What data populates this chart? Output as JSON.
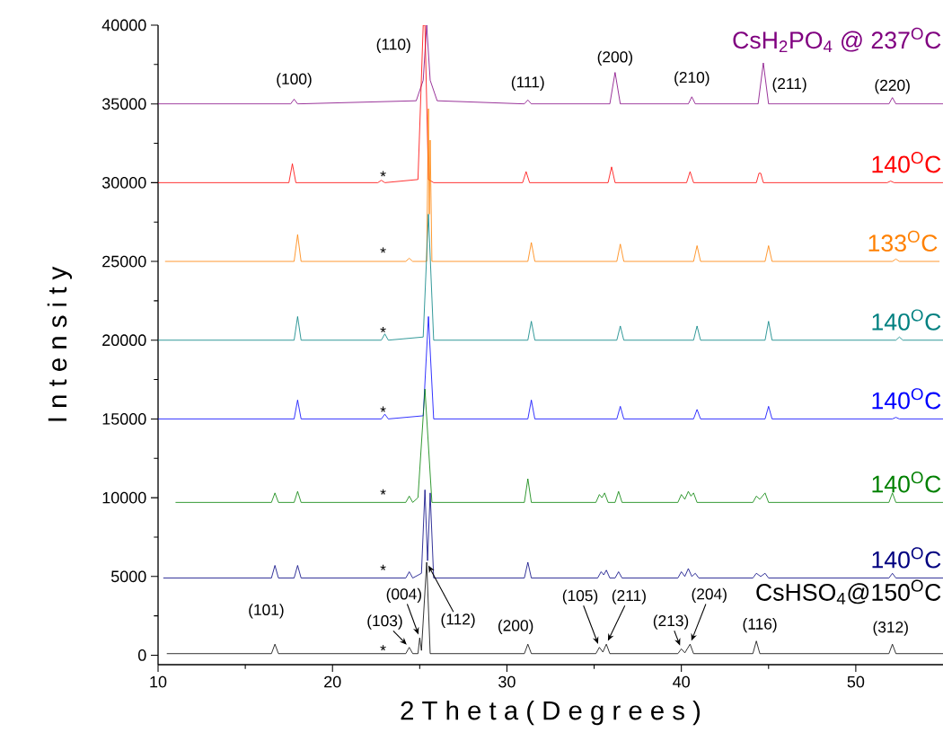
{
  "chart_data": {
    "type": "line",
    "xlabel": "2 T h e t a ( D e g r e e s )",
    "ylabel": "I n t e n s i t y",
    "xlim": [
      10,
      55
    ],
    "ylim": [
      -600,
      40000
    ],
    "xticks": [
      10,
      20,
      30,
      40,
      50
    ],
    "yticks": [
      0,
      5000,
      10000,
      15000,
      20000,
      25000,
      30000,
      35000,
      40000
    ],
    "grid": false,
    "legend": false,
    "marker": "none",
    "line_style": "solid",
    "series": [
      {
        "name": "CsH$_{2}$PO$_{4}$ @ 237$^{O}$C",
        "color": "#800080",
        "x": [
          10,
          17.6,
          17.8,
          18.0,
          24.8,
          25.2,
          25.4,
          25.6,
          26.0,
          31.0,
          31.2,
          31.4,
          35.9,
          36.2,
          36.5,
          40.4,
          40.6,
          40.8,
          44.4,
          44.7,
          45.0,
          51.9,
          52.1,
          52.3,
          55
        ],
        "values": [
          35000,
          35000,
          35300,
          35000,
          35200,
          36500,
          40000,
          36500,
          35200,
          35000,
          35250,
          35000,
          35000,
          37000,
          35000,
          35000,
          35450,
          35000,
          35000,
          37600,
          35000,
          35000,
          35400,
          35000,
          35000
        ]
      },
      {
        "name": "140$^{O}$C",
        "color": "#ff0000",
        "x": [
          10,
          17.5,
          17.7,
          17.9,
          22.6,
          22.8,
          23.0,
          24.9,
          25.2,
          25.3,
          25.5,
          25.8,
          30.9,
          31.1,
          31.3,
          35.8,
          36.0,
          36.2,
          40.3,
          40.5,
          40.7,
          44.3,
          44.45,
          44.55,
          44.7,
          51.8,
          52.0,
          52.2,
          55
        ],
        "values": [
          30000,
          30000,
          31200,
          30000,
          30000,
          30150,
          30000,
          30200,
          40000,
          40000,
          30200,
          30000,
          30000,
          30700,
          30000,
          30000,
          31000,
          30000,
          30000,
          30700,
          30000,
          30000,
          30600,
          30600,
          30000,
          30000,
          30100,
          30000,
          30000
        ]
      },
      {
        "name": "133$^{O}$C",
        "color": "#ff8000",
        "x": [
          10.4,
          17.8,
          18.0,
          18.2,
          24.2,
          24.4,
          24.6,
          25.4,
          25.5,
          25.55,
          25.6,
          25.7,
          31.2,
          31.4,
          31.6,
          36.3,
          36.5,
          36.7,
          40.7,
          40.9,
          41.1,
          44.8,
          45.0,
          45.2,
          52.1,
          52.3,
          52.5,
          54.8
        ],
        "values": [
          25000,
          25000,
          26700,
          25000,
          25000,
          25200,
          25000,
          25000,
          34700,
          28000,
          32700,
          25000,
          25000,
          26200,
          25000,
          25000,
          26100,
          25000,
          25000,
          26000,
          25000,
          25000,
          26000,
          25000,
          25000,
          25150,
          25000,
          25000
        ]
      },
      {
        "name": "140$^{O}$C",
        "color": "#008080",
        "x": [
          10,
          17.8,
          18.0,
          18.2,
          22.8,
          23.0,
          23.2,
          25.2,
          25.5,
          25.8,
          31.2,
          31.4,
          31.6,
          36.3,
          36.5,
          36.7,
          40.7,
          40.9,
          41.1,
          44.8,
          45.0,
          45.2,
          52.3,
          52.5,
          52.7,
          55
        ],
        "values": [
          20000,
          20000,
          21500,
          20000,
          20000,
          20400,
          20000,
          20200,
          28000,
          20000,
          20000,
          21200,
          20000,
          20000,
          20900,
          20000,
          20000,
          20900,
          20000,
          20000,
          21200,
          20000,
          20000,
          20200,
          20000,
          20000
        ]
      },
      {
        "name": "140$^{O}$C",
        "color": "#0000ff",
        "x": [
          10,
          17.8,
          18.0,
          18.2,
          22.8,
          23.0,
          23.2,
          25.2,
          25.5,
          25.8,
          31.2,
          31.4,
          31.6,
          36.3,
          36.5,
          36.7,
          40.7,
          40.9,
          41.1,
          44.8,
          45.0,
          45.2,
          52.1,
          52.3,
          52.5,
          55
        ],
        "values": [
          15000,
          15000,
          16200,
          15000,
          15000,
          15300,
          15000,
          15200,
          21500,
          15000,
          15000,
          16200,
          15000,
          15000,
          15800,
          15000,
          15000,
          15600,
          15000,
          15000,
          15800,
          15000,
          15000,
          15100,
          15000,
          15000
        ]
      },
      {
        "name": "140$^{O}$C",
        "color": "#008000",
        "x": [
          11,
          16.5,
          16.7,
          16.9,
          17.8,
          18.0,
          18.2,
          24.2,
          24.4,
          24.6,
          24.9,
          25.3,
          25.7,
          31.0,
          31.2,
          31.4,
          35.1,
          35.3,
          35.45,
          35.6,
          35.8,
          36.2,
          36.4,
          36.6,
          39.8,
          40.0,
          40.2,
          40.4,
          40.55,
          40.7,
          40.9,
          44.1,
          44.3,
          44.5,
          44.8,
          45.0,
          51.9,
          52.1,
          52.3,
          55
        ],
        "values": [
          9700,
          9700,
          10300,
          9700,
          9700,
          10400,
          9700,
          9700,
          10100,
          9700,
          10000,
          16900,
          9700,
          9700,
          11200,
          9700,
          9700,
          10200,
          10000,
          10300,
          9700,
          9700,
          10400,
          9700,
          9700,
          10200,
          9900,
          10400,
          10100,
          10300,
          9700,
          9700,
          10100,
          9900,
          10300,
          9700,
          9700,
          10300,
          9700,
          9700
        ]
      },
      {
        "name": "140$^{O}$C",
        "color": "#000080",
        "x": [
          10.3,
          16.5,
          16.7,
          16.9,
          17.8,
          18.0,
          18.2,
          24.2,
          24.4,
          24.6,
          25.1,
          25.3,
          25.45,
          25.6,
          25.8,
          31.0,
          31.2,
          31.4,
          35.2,
          35.4,
          35.55,
          35.7,
          35.9,
          36.2,
          36.4,
          36.6,
          39.8,
          40.0,
          40.2,
          40.4,
          40.6,
          40.8,
          41.0,
          44.1,
          44.3,
          44.55,
          44.8,
          45.0,
          51.9,
          52.1,
          52.3,
          55
        ],
        "values": [
          4900,
          4900,
          5700,
          4900,
          4900,
          5700,
          4900,
          4900,
          5300,
          4900,
          5200,
          10500,
          6000,
          10300,
          4900,
          4900,
          5900,
          4900,
          4900,
          5300,
          5100,
          5400,
          4900,
          4900,
          5300,
          4900,
          4900,
          5300,
          5000,
          5500,
          5000,
          5200,
          4900,
          4900,
          5200,
          5000,
          5200,
          4900,
          4900,
          5200,
          4900,
          4900
        ]
      },
      {
        "name": "CsHSO$_{4}$@150$^{O}$C",
        "color": "#000000",
        "x": [
          10.5,
          16.5,
          16.7,
          16.9,
          24.2,
          24.4,
          24.6,
          24.9,
          25.0,
          25.1,
          25.4,
          25.6,
          31.0,
          31.2,
          31.4,
          35.1,
          35.3,
          35.5,
          35.7,
          35.9,
          39.8,
          40.0,
          40.2,
          40.5,
          40.7,
          44.1,
          44.3,
          44.5,
          51.9,
          52.1,
          52.3,
          55
        ],
        "values": [
          100,
          100,
          700,
          100,
          100,
          500,
          100,
          100,
          1100,
          300,
          5900,
          100,
          100,
          700,
          100,
          100,
          500,
          200,
          700,
          100,
          100,
          400,
          150,
          700,
          100,
          100,
          900,
          100,
          100,
          700,
          100,
          100
        ]
      }
    ],
    "annotations": [
      {
        "text": "(100)",
        "x": 17.8,
        "y": 35300
      },
      {
        "text": "(110)",
        "x": 25.2,
        "y": 36500
      },
      {
        "text": "(111)",
        "x": 31.2,
        "y": 35250
      },
      {
        "text": "(200)",
        "x": 36.2,
        "y": 37000
      },
      {
        "text": "(210)",
        "x": 40.6,
        "y": 35450
      },
      {
        "text": "(211)",
        "x": 44.7,
        "y": 37600
      },
      {
        "text": "(220)",
        "x": 52.1,
        "y": 35400
      },
      {
        "text": "*",
        "x": 22.8,
        "y": 30150
      },
      {
        "text": "*",
        "x": 22.9,
        "y": 25000
      },
      {
        "text": "*",
        "x": 23.0,
        "y": 20400
      },
      {
        "text": "*",
        "x": 23.0,
        "y": 15300
      },
      {
        "text": "*",
        "x": 22.9,
        "y": 9700
      },
      {
        "text": "*",
        "x": 22.9,
        "y": 4900
      },
      {
        "text": "*",
        "x": 22.9,
        "y": 100
      },
      {
        "text": "(101)",
        "x": 16.7,
        "y": 700
      },
      {
        "text": "(103)",
        "x": 24.4,
        "y": 500
      },
      {
        "text": "(004)",
        "x": 25.0,
        "y": 1100
      },
      {
        "text": "(112)",
        "x": 25.4,
        "y": 5900
      },
      {
        "text": "(200)",
        "x": 31.2,
        "y": 700
      },
      {
        "text": "(105)",
        "x": 35.3,
        "y": 500
      },
      {
        "text": "(211)",
        "x": 35.7,
        "y": 700
      },
      {
        "text": "(213)",
        "x": 40.0,
        "y": 400
      },
      {
        "text": "(204)",
        "x": 40.5,
        "y": 700
      },
      {
        "text": "(116)",
        "x": 44.3,
        "y": 900
      },
      {
        "text": "(312)",
        "x": 52.1,
        "y": 700
      }
    ]
  }
}
